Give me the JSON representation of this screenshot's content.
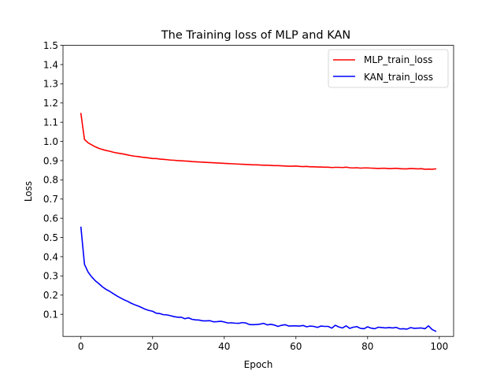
{
  "chart_data": {
    "type": "line",
    "title": "The Training loss of MLP and KAN",
    "xlabel": "Epoch",
    "ylabel": "Loss",
    "xlim": [
      -5,
      104
    ],
    "ylim": [
      -0.015,
      1.5
    ],
    "xticks": [
      0,
      20,
      40,
      60,
      80,
      100
    ],
    "yticks": [
      0.1,
      0.2,
      0.3,
      0.4,
      0.5,
      0.6,
      0.7,
      0.8,
      0.9,
      1.0,
      1.1,
      1.2,
      1.3,
      1.4,
      1.5
    ],
    "grid": false,
    "legend_position": "top-right",
    "series": [
      {
        "name": "MLP_train_loss",
        "color": "#ff0000",
        "x": [
          0,
          1,
          2,
          3,
          4,
          5,
          6,
          7,
          8,
          9,
          10,
          11,
          12,
          13,
          14,
          15,
          16,
          17,
          18,
          19,
          20,
          21,
          22,
          23,
          24,
          25,
          26,
          27,
          28,
          29,
          30,
          31,
          32,
          33,
          34,
          35,
          36,
          37,
          38,
          39,
          40,
          41,
          42,
          43,
          44,
          45,
          46,
          47,
          48,
          49,
          50,
          51,
          52,
          53,
          54,
          55,
          56,
          57,
          58,
          59,
          60,
          61,
          62,
          63,
          64,
          65,
          66,
          67,
          68,
          69,
          70,
          71,
          72,
          73,
          74,
          75,
          76,
          77,
          78,
          79,
          80,
          81,
          82,
          83,
          84,
          85,
          86,
          87,
          88,
          89,
          90,
          91,
          92,
          93,
          94,
          95,
          96,
          97,
          98,
          99
        ],
        "values": [
          1.145,
          1.01,
          0.993,
          0.982,
          0.972,
          0.964,
          0.958,
          0.953,
          0.949,
          0.944,
          0.94,
          0.937,
          0.934,
          0.93,
          0.926,
          0.923,
          0.921,
          0.918,
          0.916,
          0.914,
          0.911,
          0.911,
          0.908,
          0.907,
          0.905,
          0.903,
          0.902,
          0.9,
          0.899,
          0.898,
          0.897,
          0.895,
          0.894,
          0.893,
          0.892,
          0.891,
          0.89,
          0.889,
          0.888,
          0.887,
          0.886,
          0.885,
          0.884,
          0.883,
          0.882,
          0.881,
          0.88,
          0.879,
          0.878,
          0.878,
          0.877,
          0.876,
          0.876,
          0.875,
          0.874,
          0.874,
          0.873,
          0.872,
          0.871,
          0.871,
          0.872,
          0.87,
          0.869,
          0.87,
          0.868,
          0.868,
          0.867,
          0.867,
          0.866,
          0.866,
          0.864,
          0.865,
          0.865,
          0.864,
          0.866,
          0.863,
          0.862,
          0.863,
          0.861,
          0.862,
          0.862,
          0.861,
          0.86,
          0.859,
          0.86,
          0.86,
          0.858,
          0.859,
          0.86,
          0.858,
          0.857,
          0.857,
          0.859,
          0.858,
          0.857,
          0.858,
          0.855,
          0.856,
          0.855,
          0.857
        ]
      },
      {
        "name": "KAN_train_loss",
        "color": "#0000ff",
        "x": [
          0,
          1,
          2,
          3,
          4,
          5,
          6,
          7,
          8,
          9,
          10,
          11,
          12,
          13,
          14,
          15,
          16,
          17,
          18,
          19,
          20,
          21,
          22,
          23,
          24,
          25,
          26,
          27,
          28,
          29,
          30,
          31,
          32,
          33,
          34,
          35,
          36,
          37,
          38,
          39,
          40,
          41,
          42,
          43,
          44,
          45,
          46,
          47,
          48,
          49,
          50,
          51,
          52,
          53,
          54,
          55,
          56,
          57,
          58,
          59,
          60,
          61,
          62,
          63,
          64,
          65,
          66,
          67,
          68,
          69,
          70,
          71,
          72,
          73,
          74,
          75,
          76,
          77,
          78,
          79,
          80,
          81,
          82,
          83,
          84,
          85,
          86,
          87,
          88,
          89,
          90,
          91,
          92,
          93,
          94,
          95,
          96,
          97,
          98,
          99
        ],
        "values": [
          0.553,
          0.36,
          0.32,
          0.295,
          0.275,
          0.26,
          0.243,
          0.23,
          0.22,
          0.208,
          0.196,
          0.186,
          0.176,
          0.168,
          0.158,
          0.15,
          0.143,
          0.135,
          0.126,
          0.12,
          0.116,
          0.106,
          0.104,
          0.098,
          0.097,
          0.093,
          0.088,
          0.085,
          0.085,
          0.077,
          0.082,
          0.074,
          0.071,
          0.07,
          0.066,
          0.066,
          0.067,
          0.061,
          0.062,
          0.064,
          0.06,
          0.055,
          0.056,
          0.054,
          0.053,
          0.057,
          0.055,
          0.047,
          0.046,
          0.047,
          0.049,
          0.053,
          0.045,
          0.048,
          0.044,
          0.037,
          0.043,
          0.046,
          0.039,
          0.04,
          0.04,
          0.039,
          0.042,
          0.035,
          0.039,
          0.037,
          0.032,
          0.039,
          0.037,
          0.037,
          0.028,
          0.043,
          0.034,
          0.029,
          0.04,
          0.027,
          0.033,
          0.036,
          0.027,
          0.025,
          0.035,
          0.028,
          0.025,
          0.033,
          0.031,
          0.029,
          0.031,
          0.029,
          0.032,
          0.024,
          0.025,
          0.023,
          0.031,
          0.027,
          0.028,
          0.029,
          0.025,
          0.04,
          0.021,
          0.012
        ]
      }
    ]
  }
}
